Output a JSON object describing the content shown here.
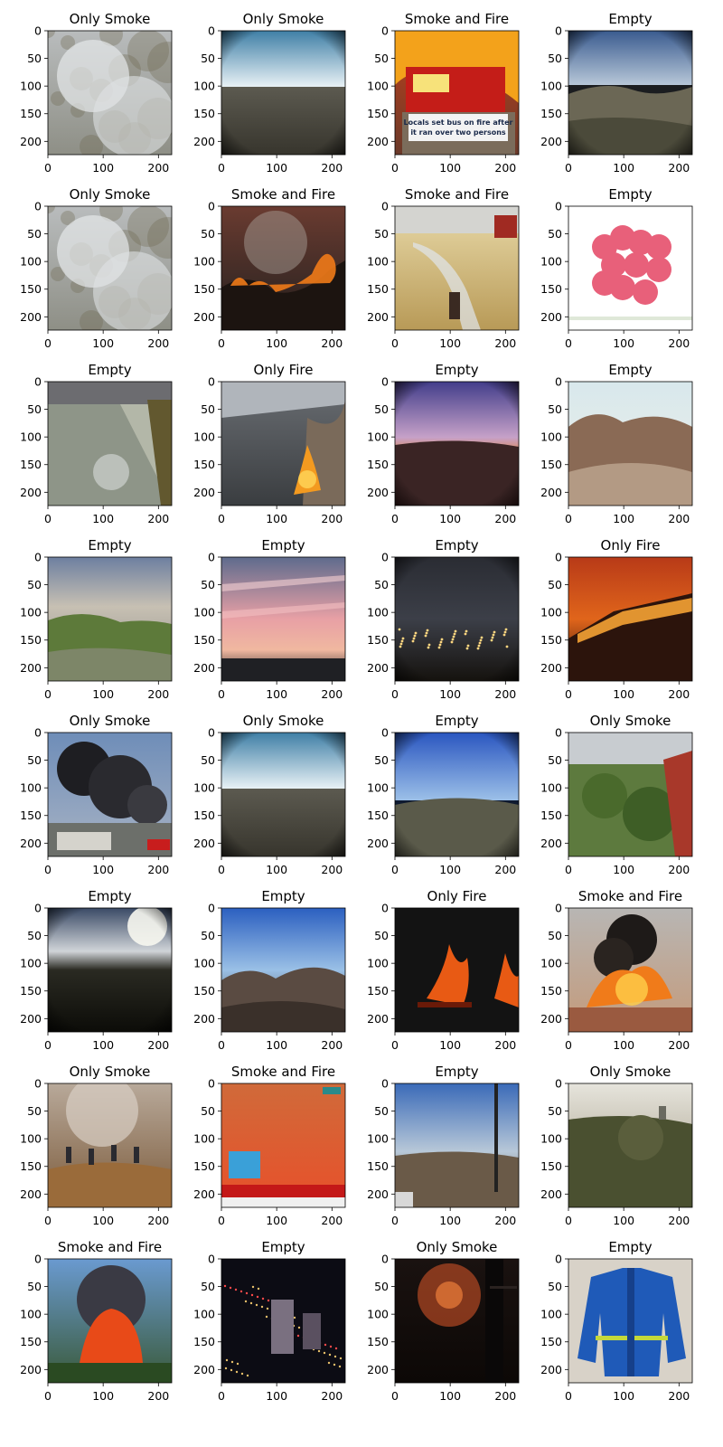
{
  "axis": {
    "x_ticks": [
      "0",
      "100",
      "200"
    ],
    "y_ticks": [
      "0",
      "50",
      "100",
      "150",
      "200"
    ]
  },
  "panels": [
    {
      "title": "Only Smoke",
      "scene": "smoke-haze"
    },
    {
      "title": "Only Smoke",
      "scene": "fisheye-valley"
    },
    {
      "title": "Smoke and Fire",
      "scene": "burning-bus",
      "caption": [
        "Locals set bus on fire after",
        "it ran over two persons"
      ]
    },
    {
      "title": "Empty",
      "scene": "fisheye-hills"
    },
    {
      "title": "Only Smoke",
      "scene": "smoke-haze"
    },
    {
      "title": "Smoke and Fire",
      "scene": "hill-fire"
    },
    {
      "title": "Smoke and Fire",
      "scene": "hose-field"
    },
    {
      "title": "Empty",
      "scene": "raspberries"
    },
    {
      "title": "Empty",
      "scene": "flood-street"
    },
    {
      "title": "Only Fire",
      "scene": "campfire"
    },
    {
      "title": "Empty",
      "scene": "purple-dusk"
    },
    {
      "title": "Empty",
      "scene": "dry-hills"
    },
    {
      "title": "Empty",
      "scene": "green-hills"
    },
    {
      "title": "Empty",
      "scene": "pink-sky"
    },
    {
      "title": "Empty",
      "scene": "night-city"
    },
    {
      "title": "Only Fire",
      "scene": "red-wildfire"
    },
    {
      "title": "Only Smoke",
      "scene": "black-smoke"
    },
    {
      "title": "Only Smoke",
      "scene": "fisheye-valley"
    },
    {
      "title": "Empty",
      "scene": "fisheye-blue"
    },
    {
      "title": "Only Smoke",
      "scene": "forest-town"
    },
    {
      "title": "Empty",
      "scene": "dark-horizon"
    },
    {
      "title": "Empty",
      "scene": "blue-mountains"
    },
    {
      "title": "Only Fire",
      "scene": "dark-flames"
    },
    {
      "title": "Smoke and Fire",
      "scene": "bonfire-crowd"
    },
    {
      "title": "Only Smoke",
      "scene": "people-smoke"
    },
    {
      "title": "Smoke and Fire",
      "scene": "news-fire"
    },
    {
      "title": "Empty",
      "scene": "pole-valley"
    },
    {
      "title": "Only Smoke",
      "scene": "hazy-trees"
    },
    {
      "title": "Smoke and Fire",
      "scene": "tree-fire"
    },
    {
      "title": "Empty",
      "scene": "city-night"
    },
    {
      "title": "Only Smoke",
      "scene": "night-glow"
    },
    {
      "title": "Empty",
      "scene": "blue-jacket"
    }
  ]
}
